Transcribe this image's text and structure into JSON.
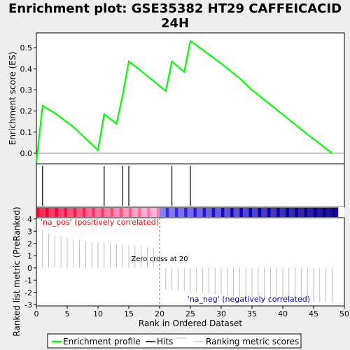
{
  "chart_data": {
    "type": "line",
    "title": "Enrichment plot: GSE35382 HT29 CAFFEICACID 24H",
    "title_lines": [
      "Enrichment plot: GSE35382 HT29 CAFFEICACID",
      "24H"
    ],
    "xlabel": "Rank in Ordered Dataset",
    "xlim": [
      0,
      50
    ],
    "x_ticks": [
      "0",
      "5",
      "10",
      "15",
      "20",
      "25",
      "30",
      "35",
      "40",
      "45",
      "50"
    ],
    "es_panel": {
      "ylabel": "Enrichment score (ES)",
      "ylim": [
        -0.05,
        0.57
      ],
      "y_ticks": [
        "0.0",
        "0.1",
        "0.2",
        "0.3",
        "0.4",
        "0.5"
      ],
      "series": [
        {
          "name": "Enrichment profile",
          "color": "#00ff00",
          "x": [
            0,
            1,
            3,
            6,
            10,
            11,
            13,
            14,
            15,
            17,
            21,
            22,
            24,
            25,
            27,
            30,
            33,
            35,
            38,
            41,
            44,
            46,
            48
          ],
          "y": [
            -0.04,
            0.225,
            0.19,
            0.125,
            0.015,
            0.185,
            0.14,
            0.275,
            0.435,
            0.39,
            0.295,
            0.435,
            0.385,
            0.532,
            0.49,
            0.425,
            0.355,
            0.3,
            0.23,
            0.16,
            0.09,
            0.045,
            0.0
          ]
        }
      ]
    },
    "hits": [
      1,
      11,
      14,
      15,
      22,
      25
    ],
    "ranked_panel": {
      "ylabel": "Ranked list metric (PreRanked)",
      "ylim": [
        -3.1,
        4.1
      ],
      "y_ticks": [
        "4",
        "3",
        "2",
        "1",
        "0",
        "-1",
        "-2",
        "-3"
      ],
      "pos_label": "'na_pos' (positively correlated)",
      "neg_label": "'na_neg' (negatively correlated)",
      "zero_cross_label": "Zero cross at 20",
      "zero_cross": 20,
      "x": [
        1,
        2,
        3,
        4,
        5,
        6,
        7,
        8,
        9,
        10,
        11,
        12,
        13,
        14,
        15,
        16,
        17,
        18,
        19,
        21,
        22,
        23,
        24,
        25,
        26,
        27,
        28,
        29,
        30,
        31,
        32,
        33,
        34,
        35,
        36,
        37,
        38,
        39,
        40,
        41,
        42,
        43,
        44,
        45,
        46,
        47,
        48
      ],
      "values": [
        3.1,
        2.8,
        2.65,
        2.55,
        2.45,
        2.35,
        2.3,
        2.2,
        2.15,
        2.1,
        2.05,
        2.0,
        1.95,
        1.9,
        1.85,
        1.8,
        1.75,
        1.7,
        1.65,
        -1.75,
        -1.8,
        -1.85,
        -1.9,
        -1.95,
        -2.0,
        -2.05,
        -2.1,
        -2.15,
        -2.2,
        -2.25,
        -2.3,
        -2.35,
        -2.4,
        -2.45,
        -2.5,
        -2.52,
        -2.55,
        -2.6,
        -2.62,
        -2.65,
        -2.7,
        -2.72,
        -2.75,
        -2.78,
        -2.8,
        -2.82,
        -2.85
      ]
    },
    "legend": {
      "placement": "bottom",
      "entries": [
        {
          "label": "Enrichment profile",
          "color": "#00ff00"
        },
        {
          "label": "Hits",
          "color": "#000000"
        },
        {
          "label": "Ranking metric scores",
          "color": "#bbbbbb"
        }
      ]
    },
    "colors": {
      "pos_text": "#ff0000",
      "neg_text": "#0000cc"
    }
  }
}
